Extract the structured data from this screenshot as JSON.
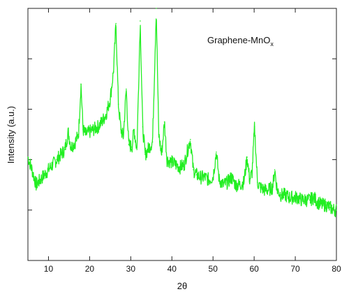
{
  "chart_data": {
    "type": "line",
    "xlabel": "2θ",
    "ylabel": "Intensity (a.u.)",
    "xlim": [
      5,
      80
    ],
    "ylim": [
      0,
      10
    ],
    "x_ticks": [
      "10",
      "20",
      "30",
      "40",
      "50",
      "60",
      "70",
      "80"
    ],
    "y_ticks_labeled": false,
    "grid": false,
    "legend": {
      "text": "Graphene-MnO",
      "subscript": "x",
      "placement": "top-right"
    },
    "series": [
      {
        "color": "#22ee22",
        "points": [
          [
            5,
            4.1
          ],
          [
            6,
            3.6
          ],
          [
            7,
            3.0
          ],
          [
            8,
            3.2
          ],
          [
            9,
            3.4
          ],
          [
            10,
            3.6
          ],
          [
            11,
            3.8
          ],
          [
            12,
            4.0
          ],
          [
            13,
            4.2
          ],
          [
            14,
            4.4
          ],
          [
            14.8,
            5.1
          ],
          [
            15.5,
            4.5
          ],
          [
            16.5,
            4.7
          ],
          [
            17.3,
            5.0
          ],
          [
            17.9,
            7.0
          ],
          [
            18.4,
            5.2
          ],
          [
            19,
            5.0
          ],
          [
            20,
            5.1
          ],
          [
            21,
            5.2
          ],
          [
            22,
            5.3
          ],
          [
            23,
            5.5
          ],
          [
            24,
            5.8
          ],
          [
            25,
            6.4
          ],
          [
            25.8,
            7.5
          ],
          [
            26.4,
            9.4
          ],
          [
            27,
            6.2
          ],
          [
            27.6,
            5.2
          ],
          [
            28.2,
            4.9
          ],
          [
            28.9,
            6.8
          ],
          [
            29.5,
            4.6
          ],
          [
            30.3,
            4.5
          ],
          [
            30.8,
            5.2
          ],
          [
            31.5,
            4.4
          ],
          [
            32.3,
            9.5
          ],
          [
            32.9,
            5.3
          ],
          [
            33.5,
            4.2
          ],
          [
            34.5,
            4.5
          ],
          [
            35.3,
            4.7
          ],
          [
            36.2,
            10.0
          ],
          [
            36.8,
            5.0
          ],
          [
            37.5,
            4.2
          ],
          [
            38.2,
            5.5
          ],
          [
            38.8,
            4.0
          ],
          [
            40,
            3.9
          ],
          [
            41,
            3.8
          ],
          [
            42,
            3.7
          ],
          [
            43,
            3.8
          ],
          [
            44,
            4.5
          ],
          [
            44.5,
            4.8
          ],
          [
            45.2,
            3.6
          ],
          [
            46,
            3.4
          ],
          [
            47,
            3.3
          ],
          [
            48,
            3.3
          ],
          [
            49,
            3.2
          ],
          [
            50,
            3.3
          ],
          [
            50.8,
            4.3
          ],
          [
            51.5,
            3.2
          ],
          [
            52.5,
            3.0
          ],
          [
            53.5,
            3.1
          ],
          [
            54.5,
            3.3
          ],
          [
            55.5,
            3.0
          ],
          [
            56.5,
            3.0
          ],
          [
            57.5,
            3.1
          ],
          [
            58.3,
            4.1
          ],
          [
            58.9,
            3.2
          ],
          [
            59.5,
            3.5
          ],
          [
            60.1,
            5.3
          ],
          [
            60.8,
            3.1
          ],
          [
            61.5,
            2.9
          ],
          [
            62.5,
            2.8
          ],
          [
            63.5,
            2.8
          ],
          [
            64.5,
            2.9
          ],
          [
            65.0,
            3.6
          ],
          [
            65.6,
            2.8
          ],
          [
            66.5,
            2.6
          ],
          [
            67.5,
            2.6
          ],
          [
            68.5,
            2.5
          ],
          [
            69.5,
            2.5
          ],
          [
            70.5,
            2.5
          ],
          [
            71.5,
            2.4
          ],
          [
            72.5,
            2.4
          ],
          [
            73.5,
            2.4
          ],
          [
            74.5,
            2.5
          ],
          [
            75.5,
            2.3
          ],
          [
            76.5,
            2.2
          ],
          [
            77.5,
            2.2
          ],
          [
            78.5,
            2.1
          ],
          [
            79.5,
            2.0
          ],
          [
            80,
            2.0
          ]
        ]
      }
    ]
  }
}
